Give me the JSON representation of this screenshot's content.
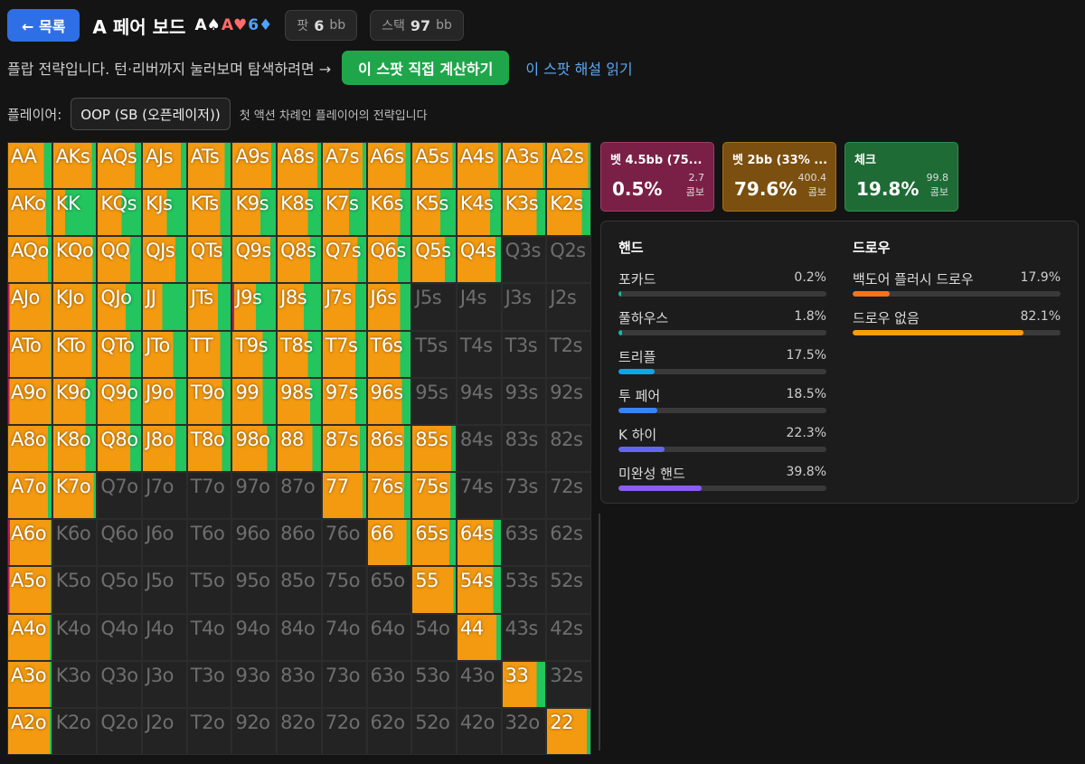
{
  "header": {
    "back_label": "← 목록",
    "title": "A 페어 보드",
    "board": [
      {
        "text": "A♠",
        "color": "#ffffff"
      },
      {
        "text": "A♥",
        "color": "#ff6b6b"
      },
      {
        "text": "6♦",
        "color": "#4fa3ff"
      }
    ],
    "pot_label": "팟",
    "pot_value": "6",
    "pot_unit": "bb",
    "stack_label": "스택",
    "stack_value": "97",
    "stack_unit": "bb"
  },
  "info": {
    "text": "플랍 전략입니다. 턴·리버까지 눌러보며 탐색하려면 →",
    "solve_button": "이 스팟 직접 계산하기",
    "explain_link": "이 스팟 해설 읽기"
  },
  "player": {
    "label": "플레이어:",
    "selected": "OOP (SB (오픈레이저))",
    "hint": "첫 액션 차례인 플레이어의 전략입니다"
  },
  "colors": {
    "bet_big": "#c2185b",
    "bet_small": "#f39a11",
    "check": "#22c55e",
    "out": "#232323"
  },
  "actions": [
    {
      "name": "벳 4.5bb (75...",
      "pct": "0.5%",
      "combos": "2.7",
      "unit": "콤보",
      "bg": "#7a2046",
      "border": "#a33a66"
    },
    {
      "name": "벳 2bb (33% ...",
      "pct": "79.6%",
      "combos": "400.4",
      "unit": "콤보",
      "bg": "#7a4f0f",
      "border": "#a8701c"
    },
    {
      "name": "체크",
      "pct": "19.8%",
      "combos": "99.8",
      "unit": "콤보",
      "bg": "#1e6b35",
      "border": "#2f8f4c"
    }
  ],
  "hands_panel": {
    "title": "핸드",
    "items": [
      {
        "name": "포카드",
        "value": "0.2%",
        "frac": 0.002,
        "color": "#14b8a6"
      },
      {
        "name": "풀하우스",
        "value": "1.8%",
        "frac": 0.018,
        "color": "#14b8a6"
      },
      {
        "name": "트리플",
        "value": "17.5%",
        "frac": 0.175,
        "color": "#0ea5e9"
      },
      {
        "name": "투 페어",
        "value": "18.5%",
        "frac": 0.185,
        "color": "#3b82f6"
      },
      {
        "name": "K 하이",
        "value": "22.3%",
        "frac": 0.223,
        "color": "#6366f1"
      },
      {
        "name": "미완성 핸드",
        "value": "39.8%",
        "frac": 0.398,
        "color": "#8b5cf6"
      }
    ]
  },
  "draws_panel": {
    "title": "드로우",
    "items": [
      {
        "name": "백도어 플러시 드로우",
        "value": "17.9%",
        "frac": 0.179,
        "color": "#f97316"
      },
      {
        "name": "드로우 없음",
        "value": "82.1%",
        "frac": 0.821,
        "color": "#f59e0b"
      }
    ]
  },
  "range_grid": {
    "rows": [
      [
        "AA",
        "AKs",
        "AQs",
        "AJs",
        "ATs",
        "A9s",
        "A8s",
        "A7s",
        "A6s",
        "A5s",
        "A4s",
        "A3s",
        "A2s"
      ],
      [
        "AKo",
        "KK",
        "KQs",
        "KJs",
        "KTs",
        "K9s",
        "K8s",
        "K7s",
        "K6s",
        "K5s",
        "K4s",
        "K3s",
        "K2s"
      ],
      [
        "AQo",
        "KQo",
        "QQ",
        "QJs",
        "QTs",
        "Q9s",
        "Q8s",
        "Q7s",
        "Q6s",
        "Q5s",
        "Q4s",
        "Q3s",
        "Q2s"
      ],
      [
        "AJo",
        "KJo",
        "QJo",
        "JJ",
        "JTs",
        "J9s",
        "J8s",
        "J7s",
        "J6s",
        "J5s",
        "J4s",
        "J3s",
        "J2s"
      ],
      [
        "ATo",
        "KTo",
        "QTo",
        "JTo",
        "TT",
        "T9s",
        "T8s",
        "T7s",
        "T6s",
        "T5s",
        "T4s",
        "T3s",
        "T2s"
      ],
      [
        "A9o",
        "K9o",
        "Q9o",
        "J9o",
        "T9o",
        "99",
        "98s",
        "97s",
        "96s",
        "95s",
        "94s",
        "93s",
        "92s"
      ],
      [
        "A8o",
        "K8o",
        "Q8o",
        "J8o",
        "T8o",
        "98o",
        "88",
        "87s",
        "86s",
        "85s",
        "84s",
        "83s",
        "82s"
      ],
      [
        "A7o",
        "K7o",
        "Q7o",
        "J7o",
        "T7o",
        "97o",
        "87o",
        "77",
        "76s",
        "75s",
        "74s",
        "73s",
        "72s"
      ],
      [
        "A6o",
        "K6o",
        "Q6o",
        "J6o",
        "T6o",
        "96o",
        "86o",
        "76o",
        "66",
        "65s",
        "64s",
        "63s",
        "62s"
      ],
      [
        "A5o",
        "K5o",
        "Q5o",
        "J5o",
        "T5o",
        "95o",
        "85o",
        "75o",
        "65o",
        "55",
        "54s",
        "53s",
        "52s"
      ],
      [
        "A4o",
        "K4o",
        "Q4o",
        "J4o",
        "T4o",
        "94o",
        "84o",
        "74o",
        "64o",
        "54o",
        "44",
        "43s",
        "42s"
      ],
      [
        "A3o",
        "K3o",
        "Q3o",
        "J3o",
        "T3o",
        "93o",
        "83o",
        "73o",
        "63o",
        "53o",
        "43o",
        "33",
        "32s"
      ],
      [
        "A2o",
        "K2o",
        "Q2o",
        "J2o",
        "T2o",
        "92o",
        "82o",
        "72o",
        "62o",
        "52o",
        "42o",
        "32o",
        "22"
      ]
    ],
    "freqs": [
      [
        [
          0,
          0.82,
          0.18
        ],
        [
          0,
          0.9,
          0.1
        ],
        [
          0,
          0.85,
          0.15
        ],
        [
          0,
          0.88,
          0.12
        ],
        [
          0,
          0.86,
          0.14
        ],
        [
          0,
          0.9,
          0.1
        ],
        [
          0,
          0.92,
          0.08
        ],
        [
          0,
          0.92,
          0.08
        ],
        [
          0,
          0.88,
          0.12
        ],
        [
          0,
          0.93,
          0.07
        ],
        [
          0,
          0.94,
          0.06
        ],
        [
          0,
          0.95,
          0.05
        ],
        [
          0,
          0.95,
          0.05
        ]
      ],
      [
        [
          0,
          0.88,
          0.12
        ],
        [
          0,
          0.28,
          0.72
        ],
        [
          0,
          0.55,
          0.45
        ],
        [
          0,
          0.55,
          0.45
        ],
        [
          0,
          0.75,
          0.25
        ],
        [
          0,
          0.65,
          0.35
        ],
        [
          0,
          0.7,
          0.3
        ],
        [
          0,
          0.6,
          0.4
        ],
        [
          0,
          0.75,
          0.25
        ],
        [
          0,
          0.65,
          0.35
        ],
        [
          0,
          0.75,
          0.25
        ],
        [
          0,
          0.8,
          0.2
        ],
        [
          0,
          0.8,
          0.2
        ]
      ],
      [
        [
          0,
          0.92,
          0.08
        ],
        [
          0,
          0.93,
          0.07
        ],
        [
          0,
          0.75,
          0.25
        ],
        [
          0,
          0.75,
          0.25
        ],
        [
          0,
          0.8,
          0.2
        ],
        [
          0,
          0.88,
          0.12
        ],
        [
          0,
          0.75,
          0.25
        ],
        [
          0,
          0.8,
          0.2
        ],
        [
          0,
          0.7,
          0.3
        ],
        [
          0,
          0.75,
          0.25
        ],
        [
          0,
          0.88,
          0.12
        ],
        [
          0,
          0,
          0
        ],
        [
          0,
          0,
          0
        ]
      ],
      [
        [
          0.03,
          0.95,
          0.02
        ],
        [
          0,
          0.92,
          0.08
        ],
        [
          0,
          0.65,
          0.35
        ],
        [
          0,
          0.45,
          0.55
        ],
        [
          0,
          0.7,
          0.3
        ],
        [
          0.04,
          0.5,
          0.46
        ],
        [
          0,
          0.6,
          0.4
        ],
        [
          0,
          0.75,
          0.25
        ],
        [
          0,
          0.75,
          0.25
        ],
        [
          0,
          0,
          0
        ],
        [
          0,
          0,
          0
        ],
        [
          0,
          0,
          0
        ],
        [
          0,
          0,
          0
        ]
      ],
      [
        [
          0.04,
          0.94,
          0.02
        ],
        [
          0,
          0.9,
          0.1
        ],
        [
          0,
          0.75,
          0.25
        ],
        [
          0,
          0.7,
          0.3
        ],
        [
          0,
          0.75,
          0.25
        ],
        [
          0,
          0.7,
          0.3
        ],
        [
          0,
          0.7,
          0.3
        ],
        [
          0,
          0.75,
          0.25
        ],
        [
          0,
          0.75,
          0.25
        ],
        [
          0,
          0,
          0
        ],
        [
          0,
          0,
          0
        ],
        [
          0,
          0,
          0
        ],
        [
          0,
          0,
          0
        ]
      ],
      [
        [
          0.03,
          0.95,
          0.02
        ],
        [
          0,
          0.75,
          0.25
        ],
        [
          0,
          0.75,
          0.25
        ],
        [
          0,
          0.75,
          0.25
        ],
        [
          0,
          0.8,
          0.2
        ],
        [
          0,
          0.7,
          0.3
        ],
        [
          0,
          0.75,
          0.25
        ],
        [
          0,
          0.75,
          0.25
        ],
        [
          0,
          0.8,
          0.2
        ],
        [
          0,
          0,
          0
        ],
        [
          0,
          0,
          0
        ],
        [
          0,
          0,
          0
        ],
        [
          0,
          0,
          0
        ]
      ],
      [
        [
          0,
          0.92,
          0.08
        ],
        [
          0,
          0.75,
          0.25
        ],
        [
          0,
          0.75,
          0.25
        ],
        [
          0,
          0.75,
          0.25
        ],
        [
          0,
          0.8,
          0.2
        ],
        [
          0,
          0.8,
          0.2
        ],
        [
          0,
          0.8,
          0.2
        ],
        [
          0,
          0.85,
          0.15
        ],
        [
          0,
          0.85,
          0.15
        ],
        [
          0,
          0.9,
          0.1
        ],
        [
          0,
          0,
          0
        ],
        [
          0,
          0,
          0
        ],
        [
          0,
          0,
          0
        ]
      ],
      [
        [
          0,
          0.92,
          0.08
        ],
        [
          0,
          0.95,
          0.05
        ],
        [
          0,
          0,
          0
        ],
        [
          0,
          0,
          0
        ],
        [
          0,
          0,
          0
        ],
        [
          0,
          0,
          0
        ],
        [
          0,
          0,
          0
        ],
        [
          0,
          0.92,
          0.08
        ],
        [
          0,
          0.85,
          0.15
        ],
        [
          0,
          0.88,
          0.12
        ],
        [
          0,
          0,
          0
        ],
        [
          0,
          0,
          0
        ],
        [
          0,
          0,
          0
        ]
      ],
      [
        [
          0.04,
          0.94,
          0.02
        ],
        [
          0,
          0,
          0
        ],
        [
          0,
          0,
          0
        ],
        [
          0,
          0,
          0
        ],
        [
          0,
          0,
          0
        ],
        [
          0,
          0,
          0
        ],
        [
          0,
          0,
          0
        ],
        [
          0,
          0,
          0
        ],
        [
          0,
          0.9,
          0.1
        ],
        [
          0,
          0.85,
          0.15
        ],
        [
          0,
          0.82,
          0.18
        ],
        [
          0,
          0,
          0
        ],
        [
          0,
          0,
          0
        ]
      ],
      [
        [
          0.03,
          0.95,
          0.02
        ],
        [
          0,
          0,
          0
        ],
        [
          0,
          0,
          0
        ],
        [
          0,
          0,
          0
        ],
        [
          0,
          0,
          0
        ],
        [
          0,
          0,
          0
        ],
        [
          0,
          0,
          0
        ],
        [
          0,
          0,
          0
        ],
        [
          0,
          0,
          0
        ],
        [
          0,
          0.95,
          0.05
        ],
        [
          0,
          0.82,
          0.18
        ],
        [
          0,
          0,
          0
        ],
        [
          0,
          0,
          0
        ]
      ],
      [
        [
          0,
          0.96,
          0.04
        ],
        [
          0,
          0,
          0
        ],
        [
          0,
          0,
          0
        ],
        [
          0,
          0,
          0
        ],
        [
          0,
          0,
          0
        ],
        [
          0,
          0,
          0
        ],
        [
          0,
          0,
          0
        ],
        [
          0,
          0,
          0
        ],
        [
          0,
          0,
          0
        ],
        [
          0,
          0,
          0
        ],
        [
          0,
          0.9,
          0.1
        ],
        [
          0,
          0,
          0
        ],
        [
          0,
          0,
          0
        ]
      ],
      [
        [
          0,
          0.96,
          0.04
        ],
        [
          0,
          0,
          0
        ],
        [
          0,
          0,
          0
        ],
        [
          0,
          0,
          0
        ],
        [
          0,
          0,
          0
        ],
        [
          0,
          0,
          0
        ],
        [
          0,
          0,
          0
        ],
        [
          0,
          0,
          0
        ],
        [
          0,
          0,
          0
        ],
        [
          0,
          0,
          0
        ],
        [
          0,
          0,
          0
        ],
        [
          0,
          0.8,
          0.2
        ],
        [
          0,
          0,
          0
        ]
      ],
      [
        [
          0,
          0.96,
          0.04
        ],
        [
          0,
          0,
          0
        ],
        [
          0,
          0,
          0
        ],
        [
          0,
          0,
          0
        ],
        [
          0,
          0,
          0
        ],
        [
          0,
          0,
          0
        ],
        [
          0,
          0,
          0
        ],
        [
          0,
          0,
          0
        ],
        [
          0,
          0,
          0
        ],
        [
          0,
          0,
          0
        ],
        [
          0,
          0,
          0
        ],
        [
          0,
          0,
          0
        ],
        [
          0,
          0.92,
          0.08
        ]
      ]
    ]
  }
}
